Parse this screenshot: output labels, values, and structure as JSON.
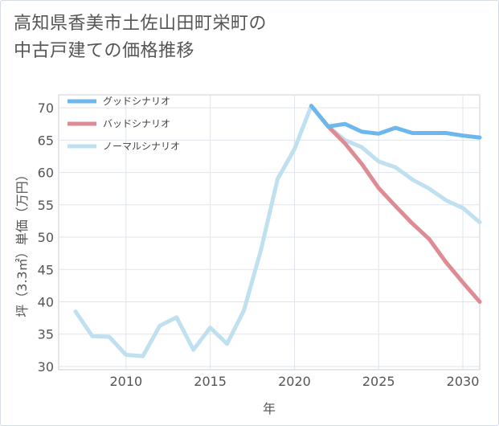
{
  "title_lines": [
    "高知県香美市土佐山田町栄町の",
    "中古戸建ての価格推移"
  ],
  "chart_data": {
    "type": "line",
    "xlabel": "年",
    "ylabel": "坪（3.3㎡）単価（万円）",
    "xlim": [
      2006,
      2031
    ],
    "ylim": [
      29.5,
      72
    ],
    "x_ticks": [
      2010,
      2015,
      2020,
      2025,
      2030
    ],
    "y_ticks": [
      30,
      35,
      40,
      45,
      50,
      55,
      60,
      65,
      70
    ],
    "grid": true,
    "legend_position": "top-left",
    "series": [
      {
        "name": "グッドシナリオ",
        "color": "#6cb8ee",
        "x": [
          2021,
          2022,
          2023,
          2024,
          2025,
          2026,
          2027,
          2028,
          2029,
          2030,
          2031
        ],
        "y": [
          70.3,
          67.1,
          67.5,
          66.3,
          66.0,
          66.9,
          66.1,
          66.1,
          66.1,
          65.7,
          65.4
        ]
      },
      {
        "name": "バッドシナリオ",
        "color": "#de8c94",
        "x": [
          2021,
          2022,
          2023,
          2024,
          2025,
          2026,
          2027,
          2028,
          2029,
          2030,
          2031
        ],
        "y": [
          70.3,
          67.1,
          64.5,
          61.3,
          57.6,
          54.8,
          52.1,
          49.7,
          46.1,
          43.0,
          40.0
        ]
      },
      {
        "name": "ノーマルシナリオ",
        "color": "#bfe0ef",
        "x": [
          2007,
          2008,
          2009,
          2010,
          2011,
          2012,
          2013,
          2014,
          2015,
          2016,
          2017,
          2018,
          2019,
          2020,
          2021,
          2022,
          2023,
          2024,
          2025,
          2026,
          2027,
          2028,
          2029,
          2030,
          2031
        ],
        "y": [
          38.5,
          34.7,
          34.6,
          31.8,
          31.6,
          36.3,
          37.6,
          32.6,
          36.0,
          33.5,
          38.7,
          47.9,
          59.0,
          63.6,
          70.3,
          67.1,
          65.0,
          63.9,
          61.7,
          60.8,
          58.9,
          57.5,
          55.7,
          54.5,
          52.3
        ]
      }
    ]
  }
}
